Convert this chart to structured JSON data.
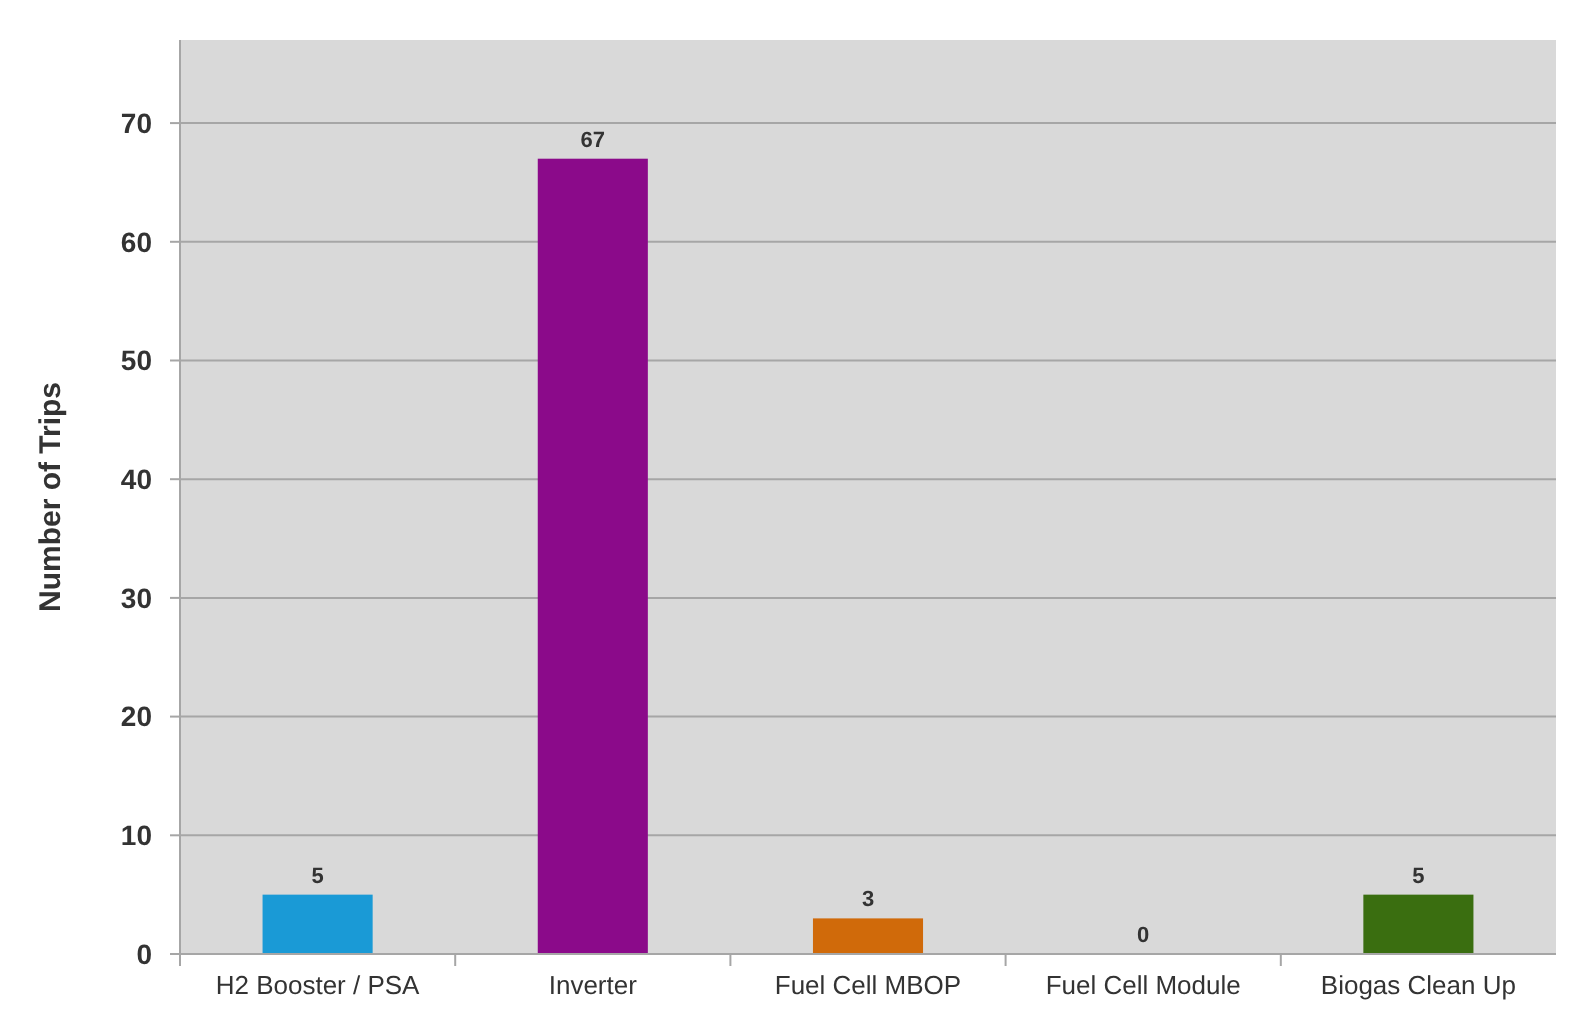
{
  "chart_data": {
    "type": "bar",
    "ylabel": "Number of Trips",
    "categories": [
      "H2 Booster / PSA",
      "Inverter",
      "Fuel Cell MBOP",
      "Fuel Cell Module",
      "Biogas Clean Up"
    ],
    "values": [
      5,
      67,
      3,
      0,
      5
    ],
    "colors": [
      "#1a9ad6",
      "#8b0a8a",
      "#d06a0a",
      "#c0c0c0",
      "#3a6e10"
    ],
    "ylim": [
      0,
      77
    ],
    "yticks": [
      0,
      10,
      20,
      30,
      40,
      50,
      60,
      70
    ],
    "grid": "y",
    "data_labels": true
  }
}
